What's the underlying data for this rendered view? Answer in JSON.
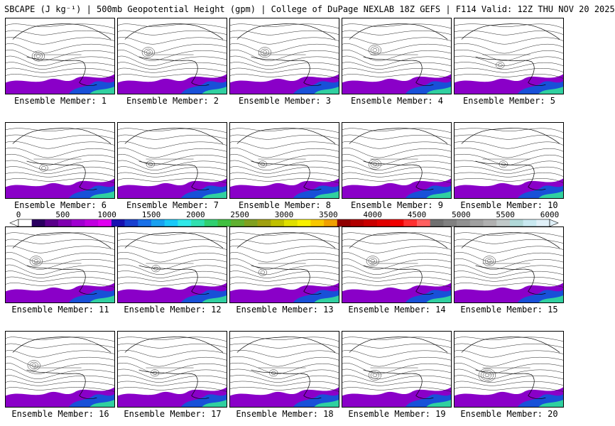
{
  "title": "SBCAPE (J kg⁻¹) | 500mb Geopotential Height (gpm) | College of DuPage NEXLAB 18Z GEFS | F114 Valid: 12Z THU NOV 20 2025",
  "panels": [
    {
      "label": "Ensemble Member: 1",
      "low": [
        0.3,
        0.5,
        10
      ]
    },
    {
      "label": "Ensemble Member: 2",
      "low": [
        0.28,
        0.45,
        8
      ]
    },
    {
      "label": "Ensemble Member: 3",
      "low": [
        0.32,
        0.45,
        10
      ]
    },
    {
      "label": "Ensemble Member: 4",
      "low": [
        0.3,
        0.42,
        8
      ]
    },
    {
      "label": "Ensemble Member: 5",
      "low": [
        0.42,
        0.62,
        6
      ]
    },
    {
      "label": "Ensemble Member: 6",
      "low": [
        0.35,
        0.6,
        6
      ]
    },
    {
      "label": "Ensemble Member: 7",
      "low": [
        0.3,
        0.55,
        6
      ]
    },
    {
      "label": "Ensemble Member: 8",
      "low": [
        0.3,
        0.55,
        6
      ]
    },
    {
      "label": "Ensemble Member: 9",
      "low": [
        0.3,
        0.55,
        10
      ]
    },
    {
      "label": "Ensemble Member: 10",
      "low": [
        0.45,
        0.55,
        6
      ]
    },
    {
      "label": "Ensemble Member: 11",
      "low": [
        0.28,
        0.45,
        10
      ]
    },
    {
      "label": "Ensemble Member: 12",
      "low": [
        0.35,
        0.55,
        6
      ]
    },
    {
      "label": "Ensemble Member: 13",
      "low": [
        0.3,
        0.6,
        6
      ]
    },
    {
      "label": "Ensemble Member: 14",
      "low": [
        0.28,
        0.45,
        10
      ]
    },
    {
      "label": "Ensemble Member: 15",
      "low": [
        0.32,
        0.45,
        10
      ]
    },
    {
      "label": "Ensemble Member: 16",
      "low": [
        0.26,
        0.45,
        10
      ]
    },
    {
      "label": "Ensemble Member: 17",
      "low": [
        0.34,
        0.55,
        6
      ]
    },
    {
      "label": "Ensemble Member: 18",
      "low": [
        0.4,
        0.55,
        6
      ]
    },
    {
      "label": "Ensemble Member: 19",
      "low": [
        0.3,
        0.58,
        10
      ]
    },
    {
      "label": "Ensemble Member: 20",
      "low": [
        0.3,
        0.58,
        12
      ]
    }
  ],
  "colorbar": {
    "ticks": [
      "0",
      "500",
      "1000",
      "1500",
      "2000",
      "2500",
      "3000",
      "3500",
      "4000",
      "4500",
      "5000",
      "5500",
      "6000"
    ],
    "min": 0,
    "max": 6000,
    "colors": [
      "#ffffff",
      "#2a0060",
      "#5a008a",
      "#8000b0",
      "#a000d0",
      "#c000e0",
      "#e000f0",
      "#1810b0",
      "#1840d0",
      "#1870e8",
      "#18a0f0",
      "#18c8f8",
      "#30e8e8",
      "#30e0b0",
      "#30d070",
      "#40c040",
      "#60b030",
      "#80a020",
      "#a0a010",
      "#c0c000",
      "#e0e000",
      "#f8f000",
      "#f8c800",
      "#f0a000",
      "#900000",
      "#b00000",
      "#c80000",
      "#e00000",
      "#f00000",
      "#ff3030",
      "#ff6060",
      "#707070",
      "#808080",
      "#909090",
      "#a0a0a0",
      "#b0b0b0",
      "#c0c8c8",
      "#b0d8d8",
      "#c8e8f0",
      "#e0f0f8"
    ]
  }
}
